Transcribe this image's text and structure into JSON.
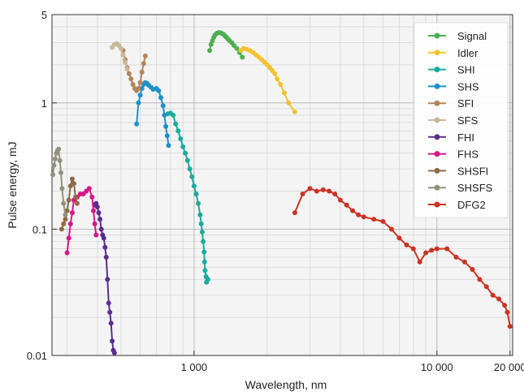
{
  "chart_data": {
    "type": "line",
    "xlabel": "Wavelength, nm",
    "ylabel": "Pulse energy, mJ",
    "x_scale": "log",
    "y_scale": "log",
    "xlim": [
      260,
      20500
    ],
    "ylim": [
      0.01,
      5
    ],
    "x_ticks": [
      {
        "value": 1000,
        "label": "1 000"
      },
      {
        "value": 10000,
        "label": "10 000"
      },
      {
        "value": 20000,
        "label": "20 000"
      }
    ],
    "y_ticks": [
      {
        "value": 0.01,
        "label": "0.01"
      },
      {
        "value": 0.1,
        "label": "0.1"
      },
      {
        "value": 1,
        "label": "1"
      },
      {
        "value": 5,
        "label": "5"
      }
    ],
    "grid": true,
    "legend_position": "top-right",
    "series": [
      {
        "name": "Signal",
        "color": "#4caf50",
        "points": [
          [
            1160,
            2.6
          ],
          [
            1175,
            2.9
          ],
          [
            1190,
            3.1
          ],
          [
            1205,
            3.3
          ],
          [
            1220,
            3.45
          ],
          [
            1240,
            3.55
          ],
          [
            1260,
            3.6
          ],
          [
            1280,
            3.6
          ],
          [
            1300,
            3.55
          ],
          [
            1320,
            3.5
          ],
          [
            1340,
            3.4
          ],
          [
            1360,
            3.3
          ],
          [
            1380,
            3.2
          ],
          [
            1400,
            3.1
          ],
          [
            1430,
            3.0
          ],
          [
            1460,
            2.85
          ],
          [
            1500,
            2.7
          ],
          [
            1540,
            2.5
          ],
          [
            1580,
            2.3
          ]
        ]
      },
      {
        "name": "Idler",
        "color": "#f2c230",
        "points": [
          [
            1560,
            2.6
          ],
          [
            1600,
            2.7
          ],
          [
            1650,
            2.65
          ],
          [
            1700,
            2.6
          ],
          [
            1750,
            2.5
          ],
          [
            1800,
            2.4
          ],
          [
            1850,
            2.3
          ],
          [
            1900,
            2.2
          ],
          [
            1950,
            2.1
          ],
          [
            2000,
            2.0
          ],
          [
            2050,
            1.9
          ],
          [
            2100,
            1.8
          ],
          [
            2150,
            1.7
          ],
          [
            2200,
            1.55
          ],
          [
            2270,
            1.4
          ],
          [
            2350,
            1.2
          ],
          [
            2450,
            1.0
          ],
          [
            2600,
            0.85
          ]
        ]
      },
      {
        "name": "SHI",
        "color": "#1aab9b",
        "points": [
          [
            780,
            0.82
          ],
          [
            800,
            0.83
          ],
          [
            820,
            0.8
          ],
          [
            840,
            0.68
          ],
          [
            860,
            0.6
          ],
          [
            880,
            0.52
          ],
          [
            900,
            0.45
          ],
          [
            920,
            0.4
          ],
          [
            940,
            0.35
          ],
          [
            960,
            0.3
          ],
          [
            980,
            0.26
          ],
          [
            1000,
            0.22
          ],
          [
            1020,
            0.19
          ],
          [
            1040,
            0.16
          ],
          [
            1060,
            0.13
          ],
          [
            1070,
            0.11
          ],
          [
            1080,
            0.095
          ],
          [
            1090,
            0.08
          ],
          [
            1100,
            0.066
          ],
          [
            1105,
            0.055
          ],
          [
            1110,
            0.047
          ],
          [
            1120,
            0.042
          ],
          [
            1125,
            0.038
          ],
          [
            1140,
            0.04
          ]
        ]
      },
      {
        "name": "SHS",
        "color": "#1e90c9",
        "points": [
          [
            580,
            0.68
          ],
          [
            590,
            1.0
          ],
          [
            600,
            1.15
          ],
          [
            610,
            1.3
          ],
          [
            620,
            1.4
          ],
          [
            630,
            1.45
          ],
          [
            640,
            1.43
          ],
          [
            650,
            1.38
          ],
          [
            665,
            1.33
          ],
          [
            680,
            1.28
          ],
          [
            700,
            1.3
          ],
          [
            715,
            1.25
          ],
          [
            730,
            1.1
          ],
          [
            745,
            0.95
          ],
          [
            755,
            0.8
          ],
          [
            765,
            0.65
          ],
          [
            775,
            0.55
          ],
          [
            785,
            0.46
          ]
        ]
      },
      {
        "name": "SFI",
        "color": "#b5835a",
        "points": [
          [
            510,
            2.6
          ],
          [
            520,
            2.2
          ],
          [
            530,
            1.9
          ],
          [
            540,
            1.7
          ],
          [
            550,
            1.55
          ],
          [
            560,
            1.4
          ],
          [
            570,
            1.3
          ],
          [
            580,
            1.25
          ],
          [
            590,
            1.3
          ],
          [
            600,
            1.45
          ],
          [
            610,
            1.75
          ],
          [
            620,
            2.05
          ],
          [
            630,
            2.35
          ]
        ]
      },
      {
        "name": "SFS",
        "color": "#c9b99a",
        "points": [
          [
            460,
            2.75
          ],
          [
            470,
            2.9
          ],
          [
            480,
            2.95
          ],
          [
            490,
            2.85
          ],
          [
            500,
            2.7
          ],
          [
            510,
            2.4
          ],
          [
            520,
            2.1
          ],
          [
            530,
            1.85
          ]
        ]
      },
      {
        "name": "FHI",
        "color": "#5b2d8e",
        "points": [
          [
            390,
            0.155
          ],
          [
            395,
            0.16
          ],
          [
            400,
            0.15
          ],
          [
            405,
            0.135
          ],
          [
            410,
            0.12
          ],
          [
            415,
            0.1
          ],
          [
            420,
            0.09
          ],
          [
            425,
            0.085
          ],
          [
            430,
            0.072
          ],
          [
            435,
            0.06
          ],
          [
            440,
            0.04
          ],
          [
            445,
            0.026
          ],
          [
            450,
            0.022
          ],
          [
            455,
            0.018
          ],
          [
            460,
            0.013
          ],
          [
            465,
            0.011
          ],
          [
            470,
            0.0105
          ]
        ]
      },
      {
        "name": "FHS",
        "color": "#d9158a",
        "points": [
          [
            300,
            0.065
          ],
          [
            305,
            0.085
          ],
          [
            310,
            0.11
          ],
          [
            315,
            0.135
          ],
          [
            320,
            0.17
          ],
          [
            330,
            0.18
          ],
          [
            340,
            0.19
          ],
          [
            350,
            0.19
          ],
          [
            360,
            0.2
          ],
          [
            370,
            0.21
          ],
          [
            380,
            0.18
          ],
          [
            385,
            0.14
          ],
          [
            390,
            0.11
          ],
          [
            395,
            0.09
          ]
        ]
      },
      {
        "name": "SHSFI",
        "color": "#8f6a44",
        "points": [
          [
            285,
            0.1
          ],
          [
            290,
            0.11
          ],
          [
            295,
            0.12
          ],
          [
            300,
            0.14
          ],
          [
            305,
            0.17
          ],
          [
            310,
            0.22
          ],
          [
            315,
            0.25
          ],
          [
            320,
            0.23
          ],
          [
            325,
            0.18
          ],
          [
            330,
            0.16
          ]
        ]
      },
      {
        "name": "SHSFS",
        "color": "#94907e",
        "points": [
          [
            262,
            0.27
          ],
          [
            265,
            0.32
          ],
          [
            268,
            0.36
          ],
          [
            271,
            0.4
          ],
          [
            274,
            0.42
          ],
          [
            277,
            0.43
          ],
          [
            280,
            0.35
          ],
          [
            283,
            0.28
          ],
          [
            286,
            0.21
          ],
          [
            290,
            0.16
          ],
          [
            295,
            0.13
          ]
        ]
      },
      {
        "name": "DFG2",
        "color": "#cc3322",
        "points": [
          [
            2600,
            0.135
          ],
          [
            2800,
            0.19
          ],
          [
            3000,
            0.21
          ],
          [
            3200,
            0.2
          ],
          [
            3400,
            0.205
          ],
          [
            3600,
            0.2
          ],
          [
            3800,
            0.19
          ],
          [
            4000,
            0.17
          ],
          [
            4250,
            0.155
          ],
          [
            4500,
            0.14
          ],
          [
            4750,
            0.13
          ],
          [
            5000,
            0.125
          ],
          [
            5500,
            0.12
          ],
          [
            6000,
            0.115
          ],
          [
            6500,
            0.1
          ],
          [
            7000,
            0.085
          ],
          [
            7500,
            0.075
          ],
          [
            8000,
            0.07
          ],
          [
            8500,
            0.055
          ],
          [
            9000,
            0.065
          ],
          [
            9500,
            0.068
          ],
          [
            10000,
            0.07
          ],
          [
            11000,
            0.07
          ],
          [
            12000,
            0.06
          ],
          [
            13000,
            0.055
          ],
          [
            14000,
            0.048
          ],
          [
            15000,
            0.04
          ],
          [
            16000,
            0.035
          ],
          [
            17000,
            0.03
          ],
          [
            18000,
            0.028
          ],
          [
            19000,
            0.025
          ],
          [
            19500,
            0.022
          ],
          [
            20000,
            0.017
          ]
        ]
      }
    ]
  }
}
